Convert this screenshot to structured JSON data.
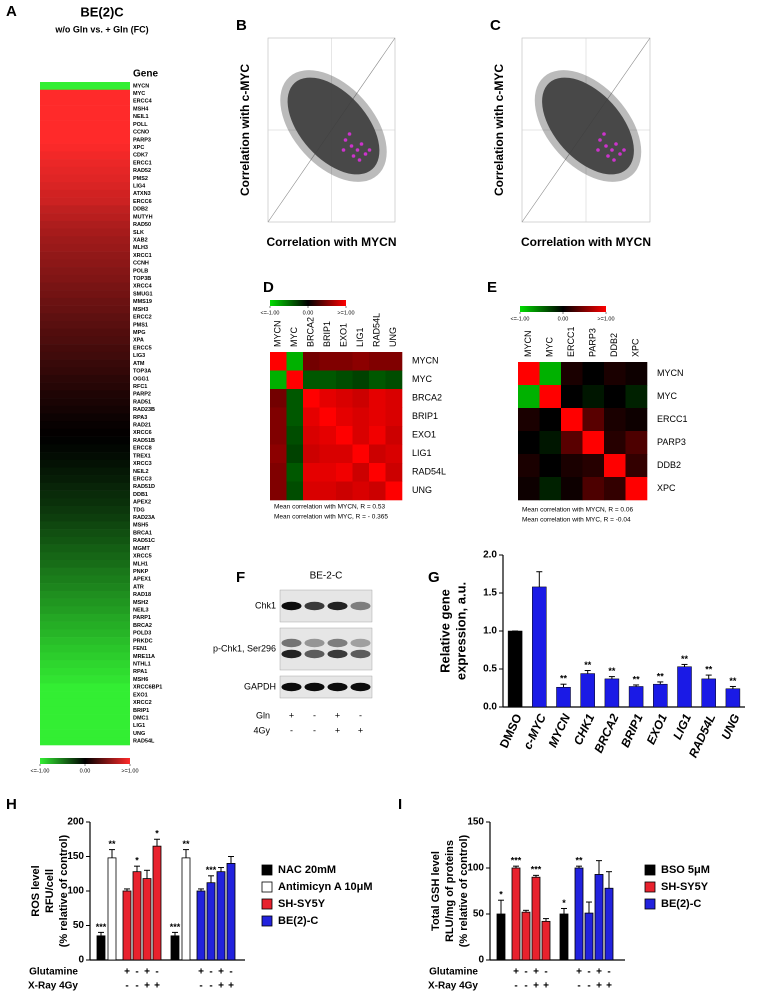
{
  "chart_data": [
    {
      "type": "heatmap",
      "panel": "A",
      "title": "BE(2)C",
      "subtitle": "w/o Gln vs. + Gln (FC)",
      "row_header": "Gene",
      "rows": [
        "MYCN",
        "MYC",
        "ERCC4",
        "MSH4",
        "NEIL1",
        "POLL",
        "CCNO",
        "PARP3",
        "XPC",
        "CDK7",
        "ERCC1",
        "RAD52",
        "PMS2",
        "LIG4",
        "ATXN3",
        "ERCC6",
        "DDB2",
        "MUTYH",
        "RAD50",
        "SLK",
        "XAB2",
        "MLH3",
        "XRCC1",
        "CCNH",
        "POLB",
        "TOP3B",
        "XRCC4",
        "SMUG1",
        "MMS19",
        "MSH3",
        "ERCC2",
        "PMS1",
        "MPG",
        "XPA",
        "ERCC5",
        "LIG3",
        "ATM",
        "TOP3A",
        "OGG1",
        "RFC1",
        "PARP2",
        "RAD51",
        "RAD23B",
        "RPA3",
        "RAD21",
        "XRCC6",
        "RAD51B",
        "ERCC8",
        "TREX1",
        "XRCC3",
        "NEIL2",
        "ERCC3",
        "RAD51D",
        "DDB1",
        "APEX2",
        "TDG",
        "RAD23A",
        "MSH5",
        "BRCA1",
        "RAD51C",
        "MGMT",
        "XRCC5",
        "MLH1",
        "PNKP",
        "APEX1",
        "ATR",
        "RAD18",
        "MSH2",
        "NEIL3",
        "PARP1",
        "BRCA2",
        "POLD3",
        "PRKDC",
        "FEN1",
        "MRE11A",
        "NTHL1",
        "RPA1",
        "MSH6",
        "XRCC6BP1",
        "EXO1",
        "XRCC2",
        "BRIP1",
        "DMC1",
        "LIG1",
        "UNG",
        "RAD54L"
      ],
      "values": [
        -1,
        1,
        1,
        1,
        1,
        1,
        1,
        1,
        0.98,
        0.95,
        0.92,
        0.9,
        0.88,
        0.85,
        0.82,
        0.8,
        0.75,
        0.72,
        0.68,
        0.65,
        0.62,
        0.6,
        0.57,
        0.55,
        0.52,
        0.5,
        0.47,
        0.45,
        0.42,
        0.4,
        0.37,
        0.35,
        0.32,
        0.3,
        0.27,
        0.25,
        0.22,
        0.2,
        0.17,
        0.15,
        0.12,
        0.1,
        0.08,
        0.05,
        0.03,
        0.01,
        -0.01,
        -0.03,
        -0.05,
        -0.07,
        -0.1,
        -0.12,
        -0.15,
        -0.18,
        -0.2,
        -0.23,
        -0.26,
        -0.3,
        -0.33,
        -0.36,
        -0.4,
        -0.43,
        -0.46,
        -0.5,
        -0.53,
        -0.56,
        -0.6,
        -0.63,
        -0.66,
        -0.7,
        -0.73,
        -0.76,
        -0.8,
        -0.83,
        -0.86,
        -0.9,
        -0.93,
        -0.96,
        -1,
        -1,
        -1,
        -1,
        -1,
        -1,
        -1,
        -1
      ],
      "colors": [
        "#33ee33",
        "#000000",
        "#ff2a2a"
      ],
      "cticks": [
        {
          "value": -1,
          "label": "<=-1.00"
        },
        {
          "value": 0,
          "label": "0.00"
        },
        {
          "value": 1,
          "label": ">=1.00"
        }
      ]
    },
    {
      "type": "scatter",
      "panel": "B",
      "xlabel": "Correlation with MYCN",
      "ylabel": "Correlation with c-MYC",
      "color": "#3c3c3c",
      "highlight_color": "#cc33cc"
    },
    {
      "type": "scatter",
      "panel": "C",
      "xlabel": "Correlation with MYCN",
      "ylabel": "Correlation with c-MYC",
      "color": "#3c3c3c",
      "highlight_color": "#cc33cc"
    },
    {
      "type": "matrix",
      "panel": "D",
      "labels": [
        "MYCN",
        "MYC",
        "BRCA2",
        "BRIP1",
        "EXO1",
        "LIG1",
        "RAD54L",
        "UNG"
      ],
      "matrix": [
        [
          1,
          -0.8,
          0.45,
          0.5,
          0.5,
          0.55,
          0.5,
          0.5
        ],
        [
          -0.8,
          1,
          -0.4,
          -0.4,
          -0.35,
          -0.3,
          -0.4,
          -0.35
        ],
        [
          0.45,
          -0.4,
          1,
          0.9,
          0.85,
          0.8,
          0.9,
          0.85
        ],
        [
          0.5,
          -0.4,
          0.9,
          1,
          0.9,
          0.85,
          0.9,
          0.85
        ],
        [
          0.5,
          -0.35,
          0.85,
          0.9,
          1,
          0.85,
          0.95,
          0.8
        ],
        [
          0.55,
          -0.3,
          0.8,
          0.85,
          0.85,
          1,
          0.8,
          0.85
        ],
        [
          0.5,
          -0.4,
          0.9,
          0.9,
          0.95,
          0.8,
          1,
          0.8
        ],
        [
          0.5,
          -0.35,
          0.85,
          0.85,
          0.8,
          0.85,
          0.8,
          1
        ]
      ],
      "colors": [
        "#00dd00",
        "#000000",
        "#ff0000"
      ],
      "cticks": [
        {
          "value": -1,
          "label": "<=-1.00"
        },
        {
          "value": 0,
          "label": "0.00"
        },
        {
          "value": 1,
          "label": ">=1.00"
        }
      ],
      "notes": [
        "Mean correlation with MYCN, R = 0.53",
        "Mean correlation with MYC, R = - 0.365"
      ]
    },
    {
      "type": "matrix",
      "panel": "E",
      "labels": [
        "MYCN",
        "MYC",
        "ERCC1",
        "PARP3",
        "DDB2",
        "XPC"
      ],
      "matrix": [
        [
          1,
          -0.8,
          0.1,
          0,
          0.1,
          0.05
        ],
        [
          -0.8,
          1,
          0,
          -0.1,
          0,
          -0.15
        ],
        [
          0.1,
          0,
          1,
          0.35,
          0.1,
          0.05
        ],
        [
          0,
          -0.1,
          0.35,
          1,
          0.15,
          0.3
        ],
        [
          0.1,
          0,
          0.1,
          0.15,
          1,
          0.2
        ],
        [
          0.05,
          -0.15,
          0.05,
          0.3,
          0.2,
          1
        ]
      ],
      "colors": [
        "#00dd00",
        "#000000",
        "#ff0000"
      ],
      "cticks": [
        {
          "value": -1,
          "label": "<=-1.00"
        },
        {
          "value": 0,
          "label": "0.00"
        },
        {
          "value": 1,
          "label": ">=1.00"
        }
      ],
      "notes": [
        "Mean correlation with MYCN, R = 0.06",
        "Mean correlation with MYC, R = -0.04"
      ]
    },
    {
      "type": "blot",
      "panel": "F",
      "title": "BE-2-C",
      "rows": [
        "Chk1",
        "p-Chk1, Ser296",
        "GAPDH"
      ],
      "conditions": [
        {
          "name": "Gln",
          "values": [
            "+",
            "-",
            "+",
            "-"
          ]
        },
        {
          "name": "4Gy",
          "values": [
            "-",
            "-",
            "+",
            "+"
          ]
        }
      ]
    },
    {
      "type": "bar",
      "panel": "G",
      "ylabel": [
        "Relative gene",
        "expression, a.u."
      ],
      "categories": [
        "DMSO",
        "c-MYC",
        "MYCN",
        "CHK1",
        "BRCA2",
        "BRIP1",
        "EXO1",
        "LIG1",
        "RAD54L",
        "UNG"
      ],
      "values": [
        1.0,
        1.58,
        0.26,
        0.44,
        0.37,
        0.27,
        0.3,
        0.53,
        0.37,
        0.24
      ],
      "errors": [
        0,
        0.2,
        0.04,
        0.04,
        0.03,
        0.02,
        0.03,
        0.03,
        0.05,
        0.03
      ],
      "significance": [
        null,
        null,
        "**",
        "**",
        "**",
        "**",
        "**",
        "**",
        "**",
        "**"
      ],
      "colors": [
        "#000000",
        "#1a1ae6",
        "#1a1ae6",
        "#1a1ae6",
        "#1a1ae6",
        "#1a1ae6",
        "#1a1ae6",
        "#1a1ae6",
        "#1a1ae6",
        "#1a1ae6"
      ],
      "ylim": [
        0,
        2
      ],
      "yticks": [
        {
          "value": 0,
          "label": "0.0"
        },
        0.5,
        {
          "value": 1,
          "label": "1.0"
        },
        1.5,
        {
          "value": 2,
          "label": "2.0"
        }
      ]
    },
    {
      "type": "grouped_bar",
      "panel": "H",
      "ylabel": [
        "ROS level",
        "RFU/cell",
        "(% relative of control)"
      ],
      "ylim": [
        0,
        200
      ],
      "yticks": [
        0,
        50,
        100,
        150,
        200
      ],
      "series": [
        {
          "name": "NAC 20mM",
          "color": "#000000",
          "control": true,
          "values": [
            35,
            35
          ],
          "errors": [
            5,
            5
          ],
          "significance": [
            "***",
            "***"
          ]
        },
        {
          "name": "Antimicyn A 10μM",
          "color": "#ffffff",
          "control": true,
          "values": [
            148,
            148
          ],
          "errors": [
            12,
            12
          ],
          "significance": [
            "**",
            "**"
          ]
        },
        {
          "name": "SH-SY5Y",
          "color": "#e8222e",
          "values": [
            100,
            128,
            118,
            165
          ],
          "errors": [
            3,
            8,
            12,
            10
          ],
          "significance": [
            null,
            "*",
            null,
            "*"
          ]
        },
        {
          "name": "BE(2)-C",
          "color": "#2222dd",
          "values": [
            100,
            112,
            128,
            140
          ],
          "errors": [
            3,
            10,
            6,
            10
          ],
          "significance": [
            null,
            "***",
            null,
            null
          ]
        }
      ],
      "conditions": [
        {
          "name": "Glutamine",
          "values": [
            "+",
            "-",
            "+",
            "-"
          ]
        },
        {
          "name": "X-Ray 4Gy",
          "values": [
            "-",
            "-",
            "+",
            "+"
          ]
        }
      ]
    },
    {
      "type": "grouped_bar",
      "panel": "I",
      "ylabel": [
        "Total GSH level",
        "RLU/mg of proteins",
        "(% relative of control)"
      ],
      "ylim": [
        0,
        150
      ],
      "yticks": [
        0,
        50,
        100,
        150
      ],
      "series": [
        {
          "name": "BSO 5μM",
          "color": "#000000",
          "control": true,
          "values": [
            50,
            50
          ],
          "errors": [
            15,
            6
          ],
          "significance": [
            "*",
            "*"
          ]
        },
        {
          "name": "SH-SY5Y",
          "color": "#e8222e",
          "values": [
            100,
            52,
            90,
            42
          ],
          "errors": [
            2,
            2,
            2,
            3
          ],
          "significance": [
            "***",
            null,
            "***",
            null
          ]
        },
        {
          "name": "BE(2)-C",
          "color": "#2222dd",
          "values": [
            100,
            51,
            93,
            78
          ],
          "errors": [
            2,
            12,
            15,
            18
          ],
          "significance": [
            "**",
            null,
            null,
            null
          ]
        }
      ],
      "conditions": [
        {
          "name": "Glutamine",
          "values": [
            "+",
            "-",
            "+",
            "-"
          ]
        },
        {
          "name": "X-Ray 4Gy",
          "values": [
            "-",
            "-",
            "+",
            "+"
          ]
        }
      ]
    }
  ]
}
